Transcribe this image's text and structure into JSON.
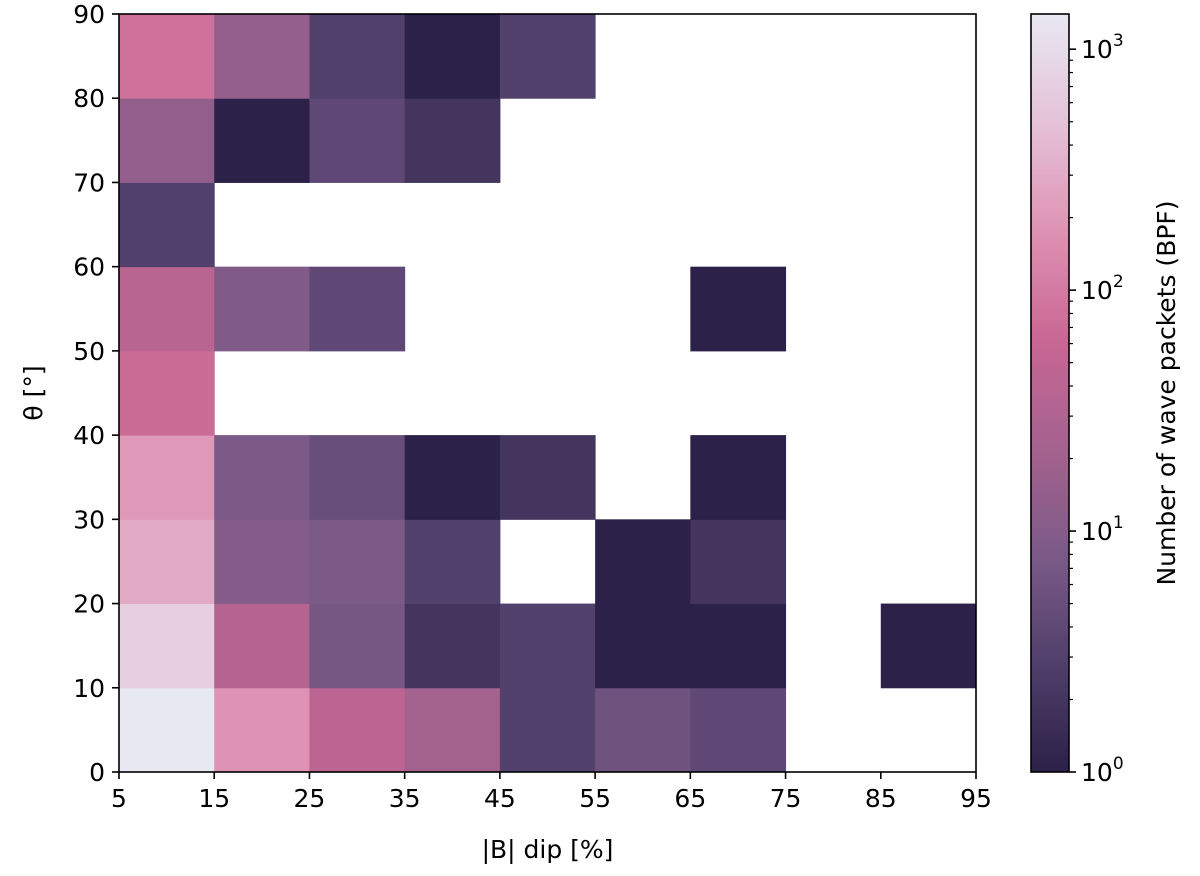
{
  "chart_data": {
    "type": "heatmap",
    "xlabel": "|B| dip [%]",
    "ylabel": "θ [°]",
    "x_edges": [
      5,
      15,
      25,
      35,
      45,
      55,
      65,
      75,
      85,
      95
    ],
    "y_edges": [
      0,
      10,
      20,
      30,
      40,
      50,
      60,
      70,
      80,
      90
    ],
    "x_ticks": [
      "5",
      "15",
      "25",
      "35",
      "45",
      "55",
      "65",
      "75",
      "85",
      "95"
    ],
    "y_ticks": [
      "0",
      "10",
      "20",
      "30",
      "40",
      "50",
      "60",
      "70",
      "80",
      "90"
    ],
    "xlim": [
      5,
      95
    ],
    "ylim": [
      0,
      90
    ],
    "colorbar": {
      "label": "Number of wave packets (BPF)",
      "scale": "log",
      "range": [
        1,
        1400
      ],
      "ticks": [
        {
          "value": 1,
          "base": "10",
          "exp": "0"
        },
        {
          "value": 10,
          "base": "10",
          "exp": "1"
        },
        {
          "value": 100,
          "base": "10",
          "exp": "2"
        },
        {
          "value": 1000,
          "base": "10",
          "exp": "3"
        }
      ],
      "colormap_stops": [
        "#2c2148",
        "#503f6b",
        "#7b5a87",
        "#a5628f",
        "#c96794",
        "#de92b4",
        "#e4c2d8",
        "#e8e8f2"
      ]
    },
    "counts": [
      [
        1400,
        180,
        45,
        22,
        3,
        6,
        4,
        null,
        null
      ],
      [
        700,
        35,
        7,
        2,
        3,
        1,
        1,
        null,
        1
      ],
      [
        300,
        10,
        8,
        3,
        null,
        1,
        2,
        null,
        null
      ],
      [
        200,
        8,
        5,
        1,
        2,
        null,
        1,
        null,
        null
      ],
      [
        70,
        null,
        null,
        null,
        null,
        null,
        null,
        null,
        null
      ],
      [
        40,
        9,
        4,
        null,
        null,
        null,
        1,
        null,
        null
      ],
      [
        3,
        null,
        null,
        null,
        null,
        null,
        null,
        null,
        null
      ],
      [
        14,
        1,
        4,
        2,
        null,
        null,
        null,
        null,
        null
      ],
      [
        80,
        15,
        3,
        1,
        3,
        null,
        null,
        null,
        null
      ]
    ]
  }
}
